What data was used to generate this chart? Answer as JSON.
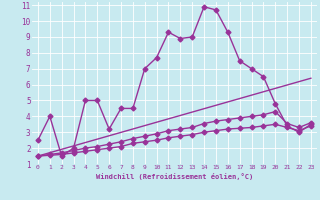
{
  "xlabel": "Windchill (Refroidissement éolien,°C)",
  "bg_color": "#c8eaf0",
  "grid_color": "#ffffff",
  "line_color": "#993399",
  "xlim": [
    -0.5,
    23.5
  ],
  "ylim": [
    1,
    11.2
  ],
  "xticks": [
    0,
    1,
    2,
    3,
    4,
    5,
    6,
    7,
    8,
    9,
    10,
    11,
    12,
    13,
    14,
    15,
    16,
    17,
    18,
    19,
    20,
    21,
    22,
    23
  ],
  "yticks": [
    1,
    2,
    3,
    4,
    5,
    6,
    7,
    8,
    9,
    10,
    11
  ],
  "line1_x": [
    0,
    1,
    2,
    3,
    4,
    5,
    6,
    7,
    8,
    9,
    10,
    11,
    12,
    13,
    14,
    15,
    16,
    17,
    18,
    19,
    20,
    21,
    22,
    23
  ],
  "line1_y": [
    2.5,
    4.0,
    1.5,
    2.0,
    5.0,
    5.0,
    3.2,
    4.5,
    4.5,
    7.0,
    7.7,
    9.3,
    8.9,
    9.0,
    10.9,
    10.7,
    9.3,
    7.5,
    7.0,
    6.5,
    4.8,
    3.4,
    3.0,
    3.5
  ],
  "line2_x": [
    0,
    1,
    2,
    3,
    4,
    5,
    6,
    7,
    8,
    9,
    10,
    11,
    12,
    13,
    14,
    15,
    16,
    17,
    18,
    19,
    20,
    21,
    22,
    23
  ],
  "line2_y": [
    1.5,
    1.55,
    1.6,
    1.7,
    1.8,
    1.9,
    2.0,
    2.1,
    2.3,
    2.4,
    2.5,
    2.65,
    2.75,
    2.85,
    3.0,
    3.1,
    3.2,
    3.25,
    3.3,
    3.4,
    3.5,
    3.3,
    3.1,
    3.4
  ],
  "line3_x": [
    0,
    1,
    2,
    3,
    4,
    5,
    6,
    7,
    8,
    9,
    10,
    11,
    12,
    13,
    14,
    15,
    16,
    17,
    18,
    19,
    20,
    21,
    22,
    23
  ],
  "line3_y": [
    1.5,
    1.6,
    1.7,
    1.85,
    2.0,
    2.1,
    2.25,
    2.4,
    2.6,
    2.75,
    2.9,
    3.1,
    3.2,
    3.3,
    3.55,
    3.7,
    3.8,
    3.9,
    4.0,
    4.1,
    4.3,
    3.55,
    3.3,
    3.6
  ],
  "line4_x": [
    0,
    23
  ],
  "line4_y": [
    1.5,
    6.4
  ],
  "marker": "D",
  "markersize": 2.5,
  "linewidth": 1.0
}
